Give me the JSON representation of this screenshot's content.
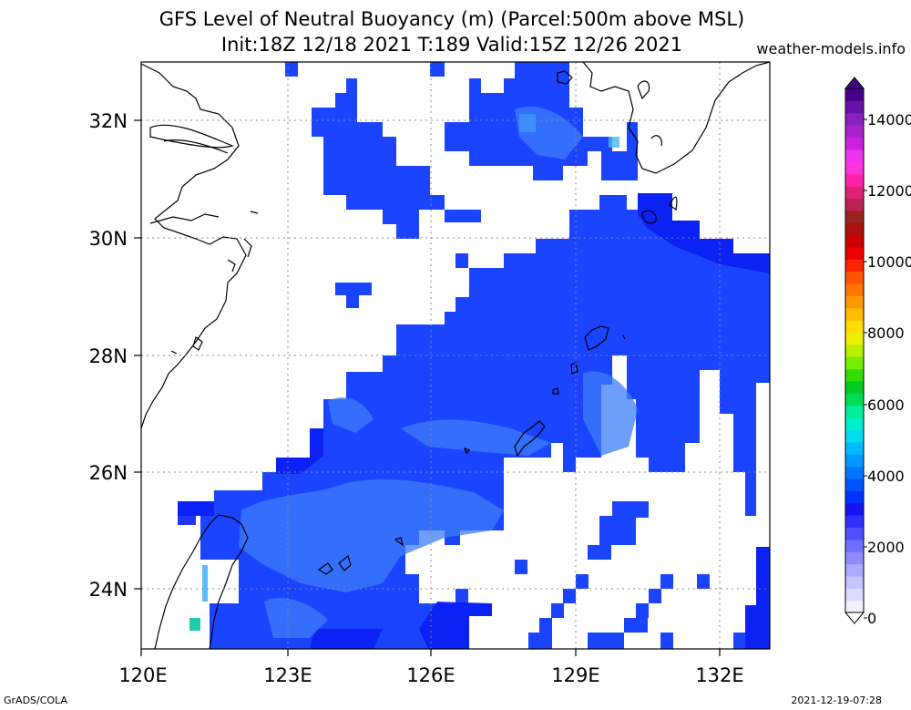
{
  "title_line1": "GFS Level of Neutral Buoyancy (m) (Parcel:500m above MSL)",
  "title_line2": "Init:18Z 12/18 2021 T:189 Valid:15Z 12/26 2021",
  "site": "weather-models.info",
  "footer_left": "GrADS/COLA",
  "footer_right": "2021-12-19-07:28",
  "lat_labels": [
    "32N",
    "30N",
    "28N",
    "26N",
    "24N"
  ],
  "lon_labels": [
    "120E",
    "123E",
    "126E",
    "129E",
    "132E"
  ],
  "colorbar": {
    "labels": [
      "0",
      "2000",
      "4000",
      "6000",
      "8000",
      "10000",
      "12000",
      "14000"
    ],
    "colors": [
      "#f2f2ff",
      "#dcdcff",
      "#c4c4ff",
      "#aaaaff",
      "#8c8cff",
      "#6e6eff",
      "#4f4fff",
      "#3030ff",
      "#1414f5",
      "#0033ff",
      "#0055ff",
      "#0077ff",
      "#0099ff",
      "#00bbff",
      "#00ddee",
      "#00eecc",
      "#00ee99",
      "#00dd55",
      "#00cc22",
      "#33dd00",
      "#77ee00",
      "#bbee00",
      "#eeee00",
      "#ffdd00",
      "#ffbb00",
      "#ff9900",
      "#ff7700",
      "#ff5500",
      "#ff2200",
      "#ee0000",
      "#cc0000",
      "#aa1111",
      "#992222",
      "#bb2255",
      "#dd2277",
      "#ff22aa",
      "#ff33dd",
      "#ee33ee",
      "#cc22dd",
      "#aa22cc",
      "#8822bb",
      "#6611aa",
      "#440088"
    ]
  },
  "field_colors": {
    "primary": "#1a44ff",
    "dark": "#0b1ef2",
    "light": "#3e7dfa",
    "teal": "#22ccaa"
  }
}
